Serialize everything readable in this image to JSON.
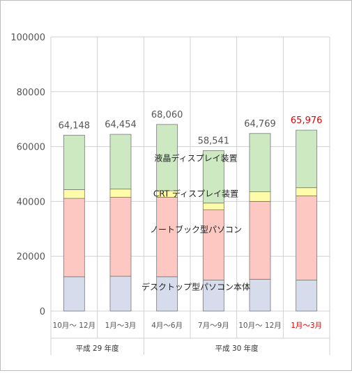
{
  "colors": {
    "desktop": "#d7dcec",
    "notebook": "#fdc8c2",
    "crt": "#fefca8",
    "lcd": "#cce9c2",
    "bar_stroke": "#777777",
    "grid": "#d0d0d0",
    "highlight": "#e60000",
    "text": "#555555"
  },
  "chart_data": {
    "type": "bar",
    "stacked": true,
    "ylim": [
      0,
      100000
    ],
    "yticks": [
      "0",
      "20000",
      "40000",
      "60000",
      "80000",
      "100000"
    ],
    "categories": [
      "10月～ 12月",
      "1月～3月",
      "4月～6月",
      "7月～9月",
      "10月～ 12月",
      "1月～3月"
    ],
    "highlight_category_index": 5,
    "groups": [
      {
        "label": "平成 29 年度",
        "span": [
          0,
          1
        ]
      },
      {
        "label": "平成 30 年度",
        "span": [
          2,
          5
        ]
      }
    ],
    "totals": [
      64148,
      64454,
      68060,
      58541,
      64769,
      65976
    ],
    "total_labels": [
      "64,148",
      "64,454",
      "68,060",
      "58,541",
      "64,769",
      "65,976"
    ],
    "series": [
      {
        "key": "desktop",
        "name": "デスクトップ型パソコン本体",
        "values": [
          12500,
          12700,
          12500,
          11300,
          11600,
          11300
        ]
      },
      {
        "key": "notebook",
        "name": "ノートブック型パソコン",
        "values": [
          28600,
          28800,
          29000,
          25600,
          28400,
          30700
        ]
      },
      {
        "key": "crt",
        "name": "CRT ディスプレイ装置",
        "values": [
          3200,
          3000,
          2400,
          2500,
          3500,
          3000
        ]
      },
      {
        "key": "lcd",
        "name": "液晶ディスプレイ装置",
        "values": [
          19848,
          19954,
          24160,
          19141,
          21269,
          20976
        ]
      }
    ],
    "series_labels": [
      {
        "key": "lcd",
        "text": "液晶ディスプレイ装置",
        "y": 56000
      },
      {
        "key": "crt",
        "text": "CRT ディスプレイ装置",
        "y": 43000
      },
      {
        "key": "notebook",
        "text": "ノートブック型パソコン",
        "y": 30000
      },
      {
        "key": "desktop",
        "text": "デスクトップ型パソコン本体",
        "y": 9000
      }
    ],
    "grid": true,
    "legend": "inline"
  }
}
